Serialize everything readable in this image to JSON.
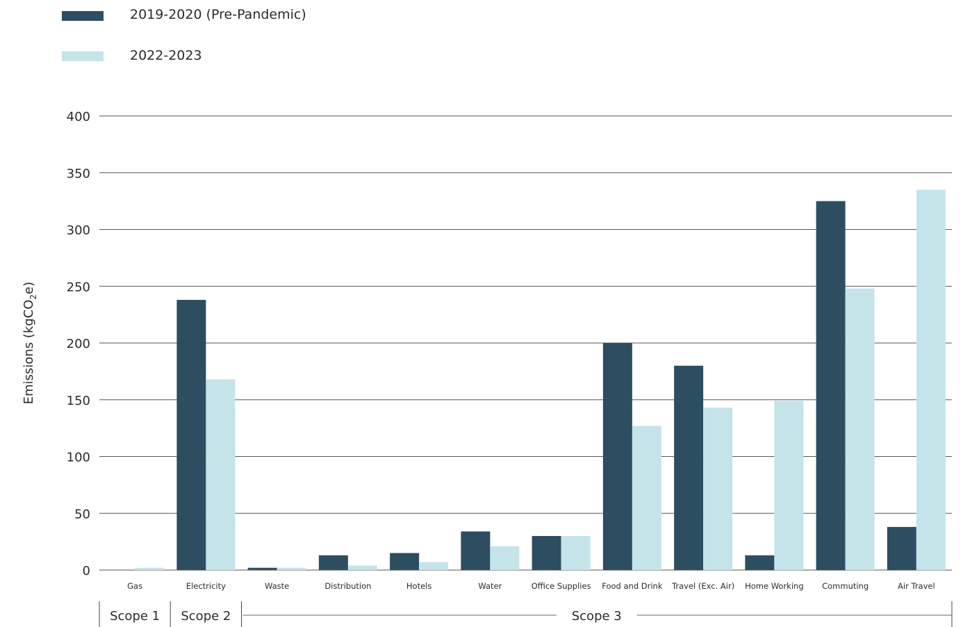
{
  "colors": {
    "series1": "#2d4d61",
    "series2": "#c5e4e9",
    "grid": "#555555"
  },
  "legend": [
    {
      "label": "2019-2020 (Pre-Pandemic)",
      "color": "#2d4d61"
    },
    {
      "label": "2022-2023",
      "color": "#c5e4e9"
    }
  ],
  "chart_data": {
    "type": "bar",
    "title": "",
    "xlabel": "",
    "ylabel": "Emissions (kgCO",
    "ylabel_sub": "2",
    "ylabel_suffix": "e)",
    "ylim": [
      0,
      400
    ],
    "yticks": [
      "0",
      "50",
      "100",
      "150",
      "200",
      "250",
      "300",
      "350",
      "400"
    ],
    "grid": true,
    "legend_position": "top-left",
    "categories": [
      "Gas",
      "Electricity",
      "Waste",
      "Distribution",
      "Hotels",
      "Water",
      "Office Supplies",
      "Food and Drink",
      "Travel (Exc. Air)",
      "Home Working",
      "Commuting",
      "Air Travel"
    ],
    "series": [
      {
        "name": "2019-2020 (Pre-Pandemic)",
        "values": [
          0,
          238,
          2,
          13,
          15,
          34,
          30,
          200,
          180,
          13,
          325,
          38
        ]
      },
      {
        "name": "2022-2023",
        "values": [
          2,
          168,
          2,
          4,
          7,
          21,
          30,
          127,
          143,
          149,
          248,
          335
        ]
      }
    ],
    "scopes": [
      {
        "label": "Scope 1",
        "categories": [
          "Gas"
        ]
      },
      {
        "label": "Scope 2",
        "categories": [
          "Electricity"
        ]
      },
      {
        "label": "Scope 3",
        "categories": [
          "Waste",
          "Distribution",
          "Hotels",
          "Water",
          "Office Supplies",
          "Food and Drink",
          "Travel (Exc. Air)",
          "Home Working",
          "Commuting",
          "Air Travel"
        ]
      }
    ]
  }
}
